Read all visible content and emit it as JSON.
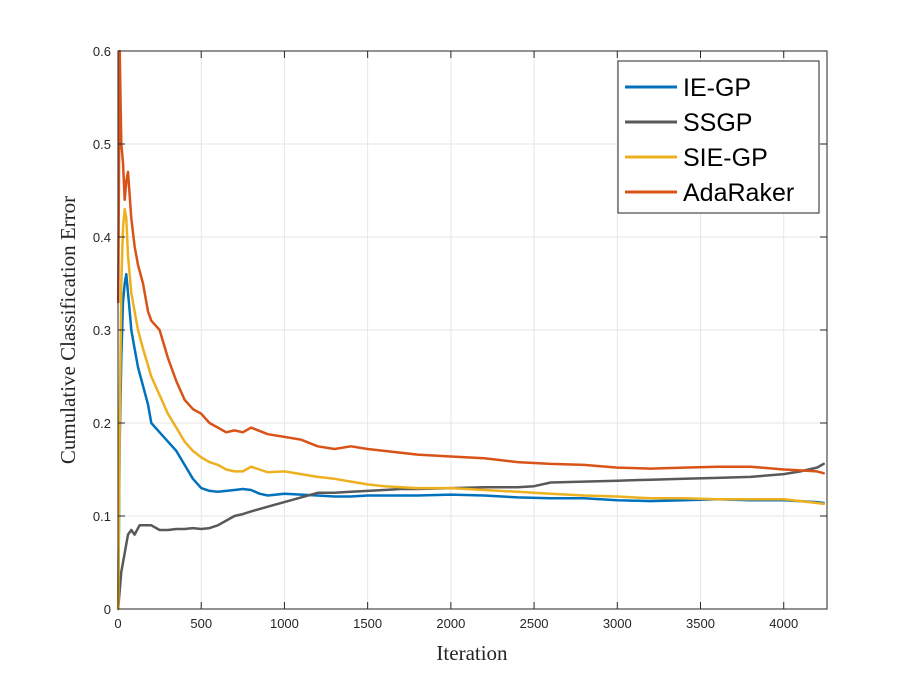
{
  "chart_data": {
    "type": "line",
    "title": "",
    "xlabel": "Iteration",
    "ylabel": "Cumulative Classification Error",
    "xlim": [
      0,
      4260
    ],
    "ylim": [
      0,
      0.6
    ],
    "xticks": [
      0,
      500,
      1000,
      1500,
      2000,
      2500,
      3000,
      3500,
      4000
    ],
    "xtick_labels": [
      "0",
      "500",
      "1000",
      "1500",
      "2000",
      "2500",
      "3000",
      "3500",
      "4000"
    ],
    "yticks": [
      0,
      0.1,
      0.2,
      0.3,
      0.4,
      0.5,
      0.6
    ],
    "ytick_labels": [
      "0",
      "0.1",
      "0.2",
      "0.3",
      "0.4",
      "0.5",
      "0.6"
    ],
    "grid": true,
    "legend_position": "top-right",
    "series": [
      {
        "name": "IE-GP",
        "color": "#0072BD",
        "x": [
          1,
          10,
          20,
          30,
          40,
          50,
          60,
          70,
          80,
          100,
          120,
          150,
          180,
          200,
          250,
          300,
          350,
          400,
          450,
          500,
          550,
          600,
          700,
          750,
          800,
          850,
          900,
          1000,
          1100,
          1200,
          1300,
          1400,
          1500,
          1600,
          1700,
          1800,
          2000,
          2200,
          2400,
          2600,
          2800,
          3000,
          3200,
          3400,
          3600,
          3800,
          4000,
          4200,
          4240
        ],
        "values": [
          0.0,
          0.18,
          0.27,
          0.33,
          0.35,
          0.36,
          0.34,
          0.32,
          0.3,
          0.28,
          0.26,
          0.24,
          0.22,
          0.2,
          0.19,
          0.18,
          0.17,
          0.155,
          0.14,
          0.13,
          0.127,
          0.126,
          0.128,
          0.129,
          0.128,
          0.124,
          0.122,
          0.124,
          0.123,
          0.122,
          0.121,
          0.121,
          0.122,
          0.122,
          0.122,
          0.122,
          0.123,
          0.122,
          0.12,
          0.119,
          0.119,
          0.117,
          0.116,
          0.117,
          0.118,
          0.117,
          0.117,
          0.115,
          0.114
        ]
      },
      {
        "name": "SSGP",
        "color": "#595959",
        "x": [
          1,
          10,
          20,
          30,
          40,
          50,
          60,
          80,
          100,
          130,
          160,
          200,
          250,
          300,
          350,
          400,
          450,
          500,
          550,
          600,
          650,
          700,
          750,
          800,
          900,
          1000,
          1100,
          1200,
          1300,
          1400,
          1500,
          1600,
          1700,
          1800,
          2000,
          2200,
          2400,
          2500,
          2600,
          2800,
          3000,
          3200,
          3400,
          3600,
          3800,
          4000,
          4100,
          4200,
          4240
        ],
        "values": [
          0.0,
          0.02,
          0.04,
          0.05,
          0.06,
          0.07,
          0.08,
          0.085,
          0.08,
          0.09,
          0.09,
          0.09,
          0.085,
          0.085,
          0.086,
          0.086,
          0.087,
          0.086,
          0.087,
          0.09,
          0.095,
          0.1,
          0.102,
          0.105,
          0.11,
          0.115,
          0.12,
          0.125,
          0.125,
          0.126,
          0.127,
          0.128,
          0.129,
          0.129,
          0.13,
          0.131,
          0.131,
          0.132,
          0.136,
          0.137,
          0.138,
          0.139,
          0.14,
          0.141,
          0.142,
          0.145,
          0.148,
          0.152,
          0.156
        ]
      },
      {
        "name": "SIE-GP",
        "color": "#EDB120",
        "x": [
          1,
          10,
          20,
          30,
          40,
          50,
          60,
          80,
          100,
          120,
          150,
          200,
          250,
          300,
          350,
          400,
          450,
          500,
          550,
          600,
          650,
          700,
          750,
          800,
          850,
          900,
          1000,
          1100,
          1200,
          1300,
          1400,
          1500,
          1600,
          1700,
          1800,
          2000,
          2200,
          2400,
          2600,
          2800,
          3000,
          3200,
          3400,
          3600,
          3800,
          4000,
          4100,
          4200,
          4240
        ],
        "values": [
          0.0,
          0.2,
          0.35,
          0.41,
          0.43,
          0.42,
          0.38,
          0.34,
          0.32,
          0.3,
          0.28,
          0.25,
          0.23,
          0.21,
          0.195,
          0.18,
          0.17,
          0.163,
          0.158,
          0.155,
          0.15,
          0.148,
          0.148,
          0.153,
          0.15,
          0.147,
          0.148,
          0.145,
          0.142,
          0.14,
          0.137,
          0.134,
          0.132,
          0.131,
          0.13,
          0.13,
          0.128,
          0.126,
          0.124,
          0.122,
          0.121,
          0.119,
          0.119,
          0.118,
          0.118,
          0.118,
          0.116,
          0.114,
          0.113
        ]
      },
      {
        "name": "AdaRaker",
        "color": "#D95319",
        "x": [
          1,
          10,
          20,
          30,
          40,
          50,
          60,
          80,
          100,
          120,
          150,
          180,
          200,
          250,
          300,
          350,
          400,
          450,
          500,
          550,
          600,
          650,
          700,
          750,
          800,
          900,
          1000,
          1100,
          1200,
          1300,
          1400,
          1500,
          1600,
          1700,
          1800,
          2000,
          2200,
          2400,
          2600,
          2800,
          3000,
          3200,
          3400,
          3600,
          3800,
          4000,
          4100,
          4200,
          4240
        ],
        "values": [
          0.33,
          0.6,
          0.5,
          0.48,
          0.44,
          0.46,
          0.47,
          0.42,
          0.39,
          0.37,
          0.35,
          0.32,
          0.31,
          0.3,
          0.27,
          0.245,
          0.225,
          0.215,
          0.21,
          0.2,
          0.195,
          0.19,
          0.192,
          0.19,
          0.195,
          0.188,
          0.185,
          0.182,
          0.175,
          0.172,
          0.175,
          0.172,
          0.17,
          0.168,
          0.166,
          0.164,
          0.162,
          0.158,
          0.156,
          0.155,
          0.152,
          0.151,
          0.152,
          0.153,
          0.153,
          0.15,
          0.149,
          0.148,
          0.146
        ]
      }
    ]
  }
}
